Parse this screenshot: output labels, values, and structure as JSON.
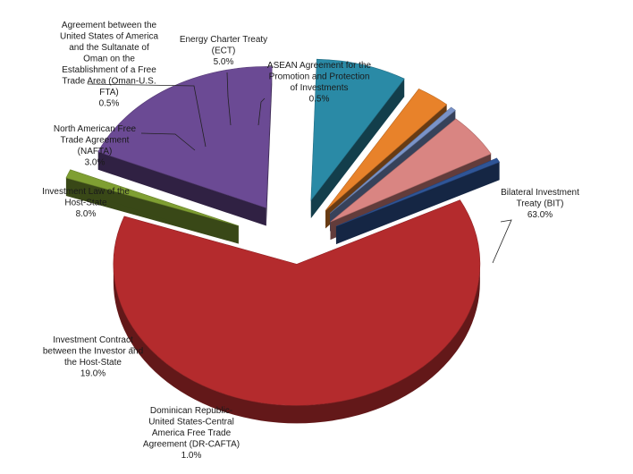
{
  "chart_data": {
    "type": "pie",
    "style": "3d-exploded",
    "legend": "none",
    "slices": [
      {
        "label": [
          "Bilateral Investment",
          "Treaty (BIT)"
        ],
        "value_label": "63.0%",
        "value": 63.0,
        "color": "#b42b2d"
      },
      {
        "label": [
          "Dominican Republic-",
          "United States-Central",
          "America Free Trade",
          "Agreement (DR-CAFTA)"
        ],
        "value_label": "1.0%",
        "value": 1.0,
        "color": "#7f9f32"
      },
      {
        "label": [
          "Investment Contract",
          "between the Investor and",
          "the Host-State"
        ],
        "value_label": "19.0%",
        "value": 19.0,
        "color": "#6b4a94"
      },
      {
        "label": [
          "Investment Law of the",
          "Host-State"
        ],
        "value_label": "8.0%",
        "value": 8.0,
        "color": "#2a8aa6"
      },
      {
        "label": [
          "North American Free",
          "Trade Agreement",
          "(NAFTA)"
        ],
        "value_label": "3.0%",
        "value": 3.0,
        "color": "#e8822a"
      },
      {
        "label": [
          "Agreement between the",
          "United States of America",
          "and the Sultanate of",
          "Oman on the",
          "Establishment of a Free",
          "Trade Area (Oman-U.S.",
          "FTA)"
        ],
        "value_label": "0.5%",
        "value": 0.5,
        "color": "#7a93c8"
      },
      {
        "label": [
          "Energy Charter Treaty",
          "(ECT)"
        ],
        "value_label": "5.0%",
        "value": 5.0,
        "color": "#d98582"
      },
      {
        "label": [
          "ASEAN Agreement for the",
          "Promotion and Protection",
          "of Investments"
        ],
        "value_label": "0.5%",
        "value": 0.5,
        "color": "#2f5597"
      }
    ]
  }
}
